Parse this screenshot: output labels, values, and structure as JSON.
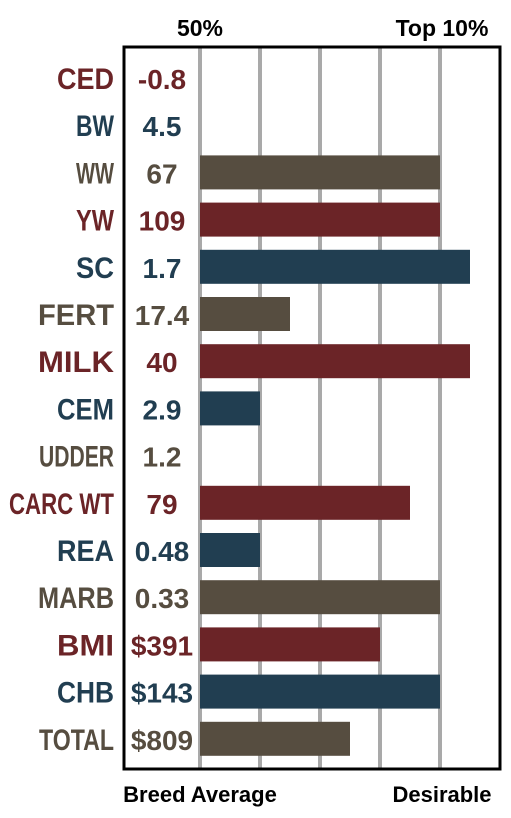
{
  "chart_data": {
    "type": "bar",
    "orientation": "horizontal",
    "top_labels": {
      "left": "50%",
      "right": "Top 10%"
    },
    "bottom_labels": {
      "left": "Breed Average",
      "right": "Desirable"
    },
    "xlabel": "",
    "ylabel": "",
    "grid": true,
    "xlim": [
      0,
      100
    ],
    "rows": [
      {
        "trait": "CED",
        "epd": "-0.8",
        "bar": 0,
        "color": "#6b2427"
      },
      {
        "trait": "BW",
        "epd": "4.5",
        "bar": 0,
        "color": "#213e51"
      },
      {
        "trait": "WW",
        "epd": "67",
        "bar": 80,
        "color": "#564d40"
      },
      {
        "trait": "YW",
        "epd": "109",
        "bar": 80,
        "color": "#6b2427"
      },
      {
        "trait": "SC",
        "epd": "1.7",
        "bar": 90,
        "color": "#213e51"
      },
      {
        "trait": "FERT",
        "epd": "17.4",
        "bar": 30,
        "color": "#564d40"
      },
      {
        "trait": "MILK",
        "epd": "40",
        "bar": 90,
        "color": "#6b2427"
      },
      {
        "trait": "CEM",
        "epd": "2.9",
        "bar": 20,
        "color": "#213e51"
      },
      {
        "trait": "UDDER",
        "epd": "1.2",
        "bar": 0,
        "color": "#564d40"
      },
      {
        "trait": "CARC WT",
        "epd": "79",
        "bar": 70,
        "color": "#6b2427"
      },
      {
        "trait": "REA",
        "epd": "0.48",
        "bar": 20,
        "color": "#213e51"
      },
      {
        "trait": "MARB",
        "epd": "0.33",
        "bar": 80,
        "color": "#564d40"
      },
      {
        "trait": "BMI",
        "epd": "$391",
        "bar": 60,
        "color": "#6b2427"
      },
      {
        "trait": "CHB",
        "epd": "$143",
        "bar": 80,
        "color": "#213e51"
      },
      {
        "trait": "TOTAL",
        "epd": "$809",
        "bar": 50,
        "color": "#564d40"
      }
    ],
    "colors": {
      "grid": "#a9a9a9",
      "frame": "#000000",
      "header": "#000000"
    }
  }
}
